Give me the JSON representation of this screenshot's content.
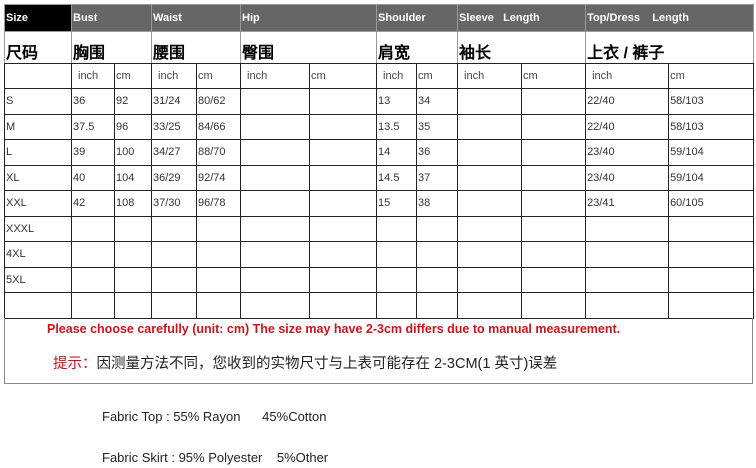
{
  "header": {
    "groups": [
      "Size",
      "Bust",
      "Waist",
      "Hip",
      "Shoulder",
      "Sleeve   Length",
      "Top/Dress    Length"
    ]
  },
  "chinese": [
    "尺码",
    "胸围",
    "腰围",
    "臀围",
    "肩宽",
    "袖长",
    "上衣 / 裤子"
  ],
  "units": {
    "inch": "inch",
    "cm": "cm"
  },
  "rows": [
    [
      "S",
      "36",
      "92",
      "31/24",
      "80/62",
      "",
      "",
      "13",
      "34",
      "",
      "",
      "22/40",
      "58/103"
    ],
    [
      "M",
      "37.5",
      "96",
      "33/25",
      "84/66",
      "",
      "",
      "13.5",
      "35",
      "",
      "",
      "22/40",
      "58/103"
    ],
    [
      "L",
      "39",
      "100",
      "34/27",
      "88/70",
      "",
      "",
      "14",
      "36",
      "",
      "",
      "23/40",
      "59/104"
    ],
    [
      "XL",
      "40",
      "104",
      "36/29",
      "92/74",
      "",
      "",
      "14.5",
      "37",
      "",
      "",
      "23/40",
      "59/104"
    ],
    [
      "XXL",
      "42",
      "108",
      "37/30",
      "96/78",
      "",
      "",
      "15",
      "38",
      "",
      "",
      "23/41",
      "60/105"
    ],
    [
      "XXXL",
      "",
      "",
      "",
      "",
      "",
      "",
      "",
      "",
      "",
      "",
      "",
      ""
    ],
    [
      "4XL",
      "",
      "",
      "",
      "",
      "",
      "",
      "",
      "",
      "",
      "",
      "",
      ""
    ],
    [
      "5XL",
      "",
      "",
      "",
      "",
      "",
      "",
      "",
      "",
      "",
      "",
      "",
      ""
    ],
    [
      "",
      "",
      "",
      "",
      "",
      "",
      "",
      "",
      "",
      "",
      "",
      "",
      ""
    ]
  ],
  "note": {
    "english": "Please choose carefully (unit: cm) The size may have 2-3cm differs due to manual measurement.",
    "tip_label": "提示：",
    "tip_text": "因测量方法不同，您收到的实物尺寸与上表可能存在 2-3CM(1 英寸)误差"
  },
  "fabric": {
    "top": "Fabric Top : 55% Rayon      45%Cotton",
    "skirt": "Fabric Skirt : 95% Polyester    5%Other"
  },
  "colors": {
    "header_bg": "#666666",
    "size_bg": "#000000",
    "note_red": "#c8151d"
  }
}
